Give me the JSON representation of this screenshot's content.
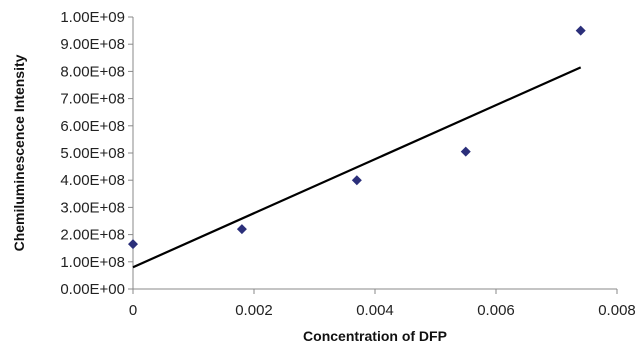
{
  "chart_data": {
    "type": "scatter",
    "title": "",
    "xlabel": "Concentration of DFP",
    "ylabel": "Chemiluminescence Intensity",
    "xlim": [
      0,
      0.008
    ],
    "ylim": [
      0,
      1000000000
    ],
    "x_ticks": [
      0,
      0.002,
      0.004,
      0.006,
      0.008
    ],
    "x_tick_labels": [
      "0",
      "0.002",
      "0.004",
      "0.006",
      "0.008"
    ],
    "y_ticks": [
      0,
      100000000,
      200000000,
      300000000,
      400000000,
      500000000,
      600000000,
      700000000,
      800000000,
      900000000,
      1000000000
    ],
    "y_tick_labels": [
      "0.00E+00",
      "1.00E+08",
      "2.00E+08",
      "3.00E+08",
      "4.00E+08",
      "5.00E+08",
      "6.00E+08",
      "7.00E+08",
      "8.00E+08",
      "9.00E+08",
      "1.00E+09"
    ],
    "grid": false,
    "legend": "none",
    "series": [
      {
        "x": [
          0,
          0.0018,
          0.0037,
          0.0055,
          0.0074
        ],
        "y": [
          165000000,
          220000000,
          400000000,
          505000000,
          950000000
        ],
        "marker": "diamond",
        "color": "#2b2f7a"
      }
    ],
    "trendline": {
      "type": "linear",
      "x": [
        0,
        0.0074
      ],
      "y": [
        80000000,
        815000000
      ],
      "color": "#000000"
    }
  }
}
